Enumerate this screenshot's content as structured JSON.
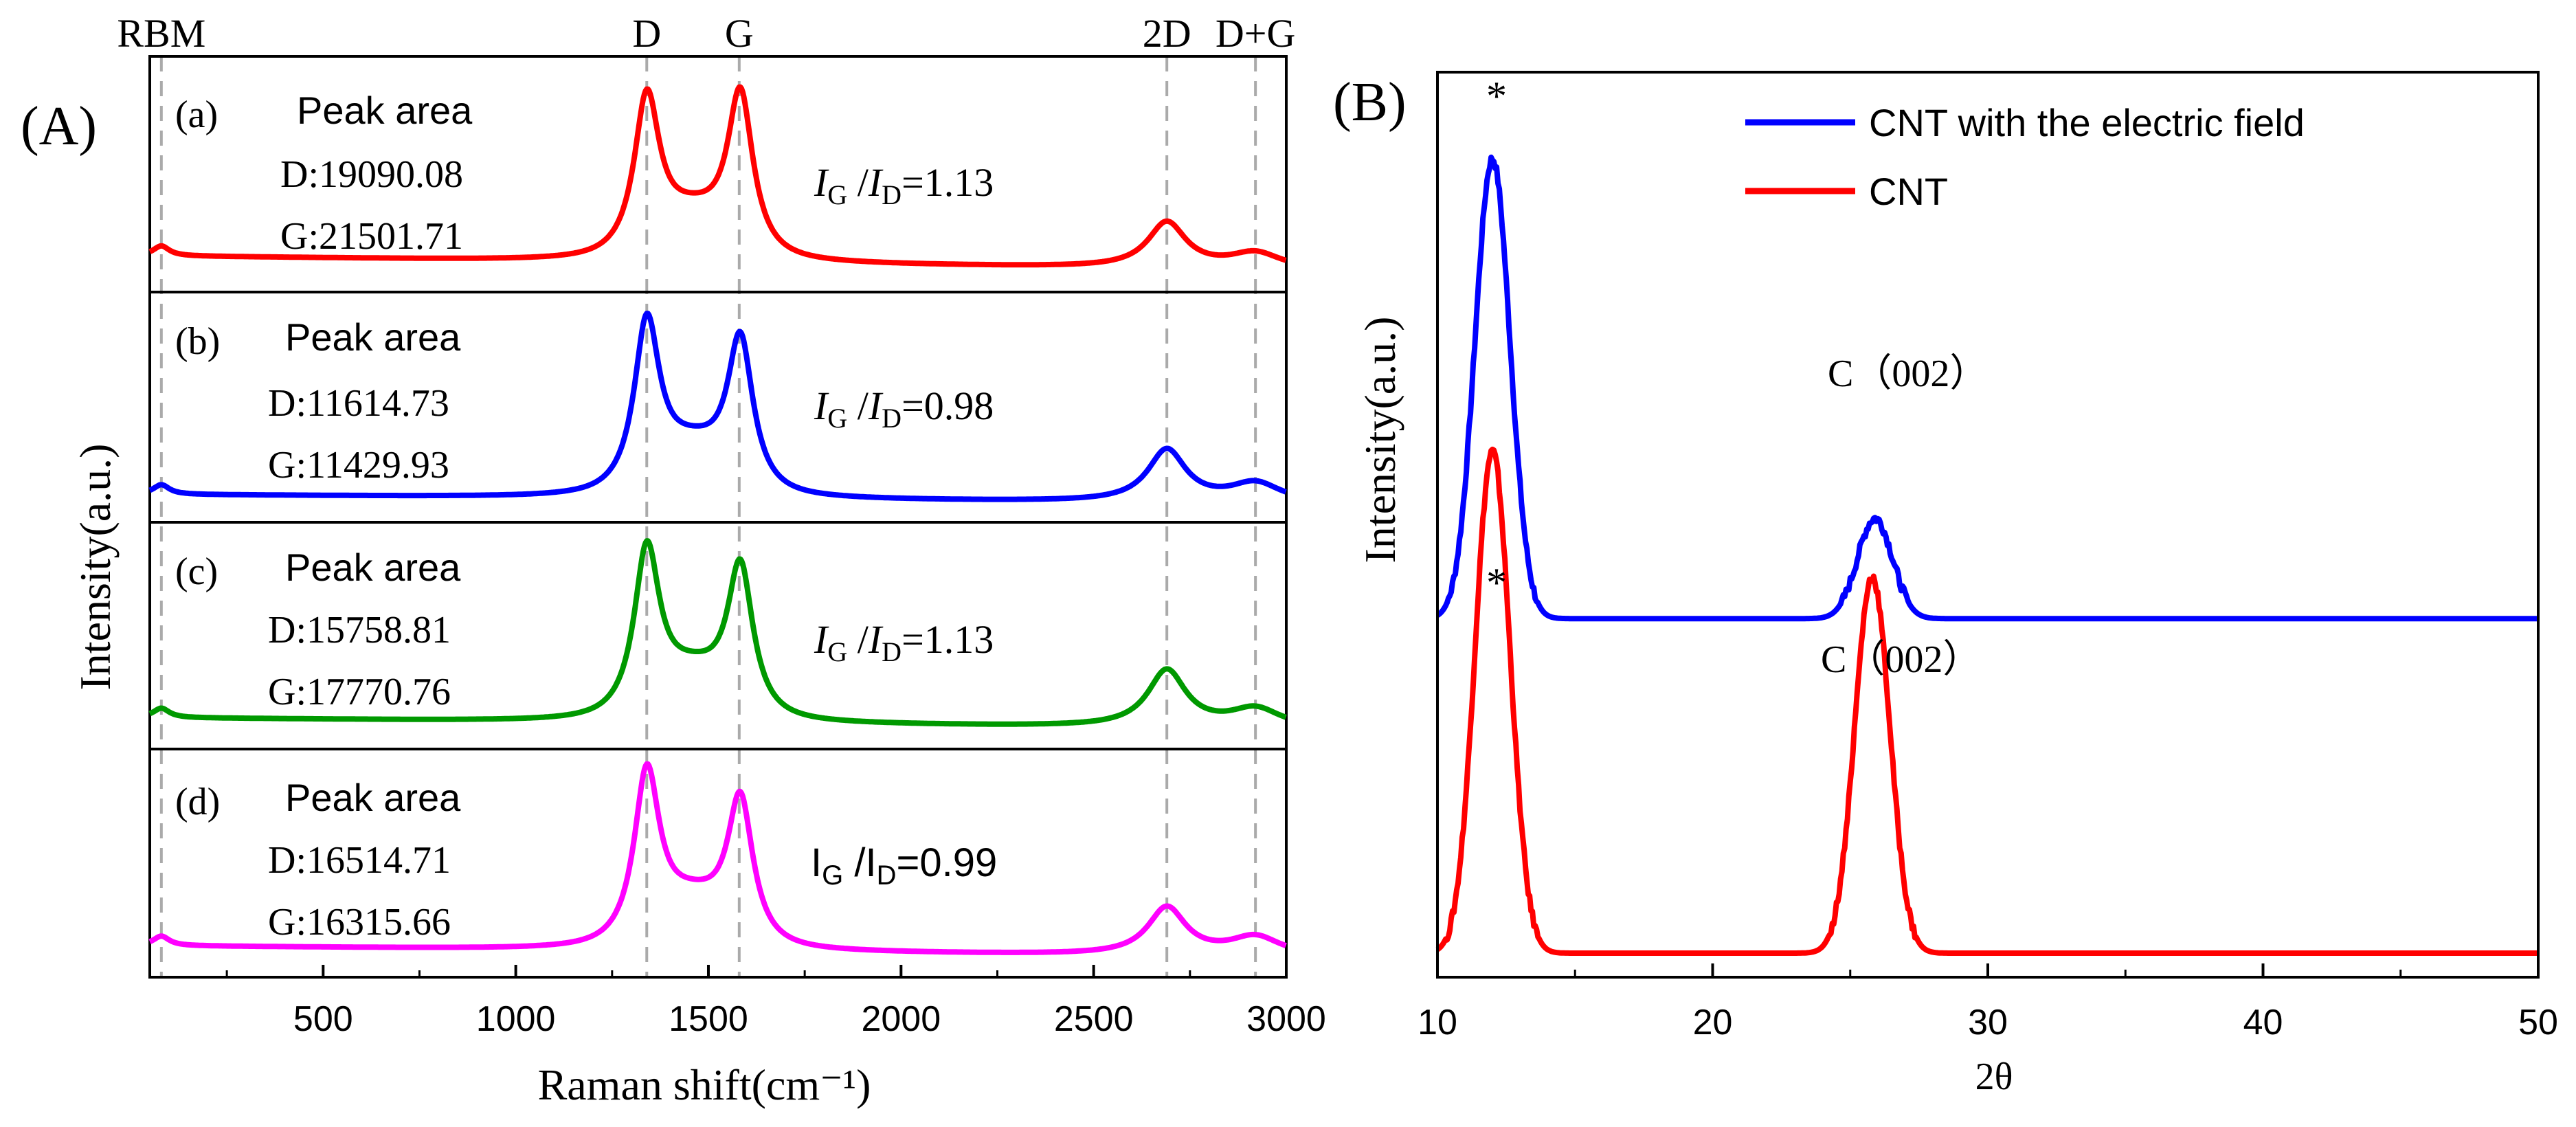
{
  "chart_data": [
    {
      "type": "line",
      "panel_label": "(A)",
      "xlabel": "Raman shift(cm⁻¹)",
      "ylabel": "Intensity(a.u.)",
      "xlim": [
        50,
        3000
      ],
      "xticks": [
        500,
        1000,
        1500,
        2000,
        2500,
        3000
      ],
      "peak_markers": [
        {
          "label": "RBM",
          "x": 80
        },
        {
          "label": "D",
          "x": 1340
        },
        {
          "label": "G",
          "x": 1580
        },
        {
          "label": "2D",
          "x": 2690
        },
        {
          "label": "D+G",
          "x": 2920
        }
      ],
      "subplots": [
        {
          "label": "(a)",
          "color": "#ff0000",
          "peak_area_title": "Peak area",
          "d_area": "D:19090.08",
          "g_area": "G:21501.71",
          "ratio_I": "I",
          "ratio_G": "G",
          "ratio_sep": " /",
          "ratio_D": "D",
          "ratio_value": "=1.13",
          "peaks": {
            "baseline": 0.12,
            "RBM": 0.05,
            "D": 0.78,
            "G": 0.8,
            "2D": 0.23,
            "D+G": 0.08
          }
        },
        {
          "label": "(b)",
          "color": "#0000ff",
          "peak_area_title": "Peak area",
          "d_area": "D:11614.73",
          "g_area": "G:11429.93",
          "ratio_I": "I",
          "ratio_G": "G",
          "ratio_sep": " /",
          "ratio_D": "D",
          "ratio_value": "=0.98",
          "peaks": {
            "baseline": 0.08,
            "RBM": 0.05,
            "D": 0.86,
            "G": 0.77,
            "2D": 0.27,
            "D+G": 0.1
          }
        },
        {
          "label": "(c)",
          "color": "#009900",
          "peak_area_title": "Peak area",
          "d_area": "D:15758.81",
          "g_area": "G:17770.76",
          "ratio_I": "I",
          "ratio_G": "G",
          "ratio_sep": " /",
          "ratio_D": "D",
          "ratio_value": "=1.13",
          "peaks": {
            "baseline": 0.1,
            "RBM": 0.05,
            "D": 0.86,
            "G": 0.77,
            "2D": 0.3,
            "D+G": 0.1
          }
        },
        {
          "label": "(d)",
          "color": "#ff00ff",
          "peak_area_title": "Peak area",
          "d_area": "D:16514.71",
          "g_area": "G:16315.66",
          "ratio_I": "I",
          "ratio_G": "G",
          "ratio_sep": " /",
          "ratio_D": "D",
          "ratio_value": "=0.99",
          "peaks": {
            "baseline": 0.1,
            "RBM": 0.05,
            "D": 0.88,
            "G": 0.74,
            "2D": 0.25,
            "D+G": 0.1
          }
        }
      ]
    },
    {
      "type": "line",
      "panel_label": "(B)",
      "xlabel": "2θ",
      "ylabel": "Intensity(a.u.)",
      "xlim": [
        10,
        50
      ],
      "xticks": [
        10,
        20,
        30,
        40,
        50
      ],
      "series": [
        {
          "name": "CNT with the electric field",
          "color": "#0000ff",
          "baseline": 0.4,
          "peak_label": "C（002）",
          "star": "*",
          "peaks": [
            {
              "center": 12.0,
              "height": 0.55
            },
            {
              "center": 25.9,
              "height": 0.12
            }
          ]
        },
        {
          "name": "CNT",
          "color": "#ff0000",
          "baseline": 0.0,
          "peak_label": "C（002）",
          "star": "*",
          "peaks": [
            {
              "center": 12.0,
              "height": 0.6
            },
            {
              "center": 25.8,
              "height": 0.45
            }
          ]
        }
      ]
    }
  ]
}
